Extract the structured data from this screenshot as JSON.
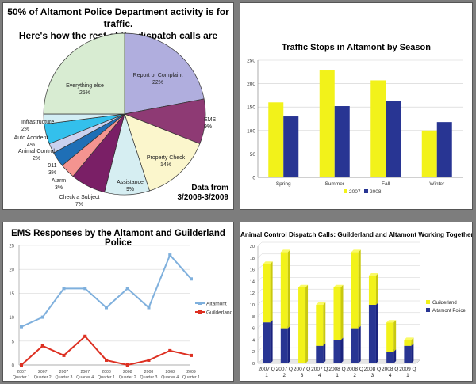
{
  "chart_data": [
    {
      "type": "pie",
      "title": "50% of Altamont Police Department activity is for traffic.",
      "subtitle": "Here's how the rest of the dispatch calls are divided:",
      "note_line1": "Data from",
      "note_line2": "3/2008-3/2009",
      "slices": [
        {
          "label": "Report or Complaint",
          "pct": "22%",
          "value": 22,
          "color": "#b0aede"
        },
        {
          "label": "EMS",
          "pct": "9%",
          "value": 9,
          "color": "#8e3a74"
        },
        {
          "label": "Property Check",
          "pct": "14%",
          "value": 14,
          "color": "#fbf6cc"
        },
        {
          "label": "Assistance",
          "pct": "9%",
          "value": 9,
          "color": "#d6eef2"
        },
        {
          "label": "Check a Subject",
          "pct": "7%",
          "value": 7,
          "color": "#7a1f66"
        },
        {
          "label": "Alarm",
          "pct": "3%",
          "value": 3,
          "color": "#f49490"
        },
        {
          "label": "911",
          "pct": "3%",
          "value": 3,
          "color": "#1f6fb6"
        },
        {
          "label": "Animal Control",
          "pct": "2%",
          "value": 2,
          "color": "#cad1ef"
        },
        {
          "label": "Auto Accident",
          "pct": "4%",
          "value": 4,
          "color": "#33c0ec"
        },
        {
          "label": "Infrastructure",
          "pct": "2%",
          "value": 2,
          "color": "#d3eef5"
        },
        {
          "label": "Everything else",
          "pct": "25%",
          "value": 25,
          "color": "#d8ecd2"
        }
      ]
    },
    {
      "type": "bar",
      "title": "Traffic Stops in Altamont by Season",
      "categories": [
        "Spring",
        "Summer",
        "Fall",
        "Winter"
      ],
      "series": [
        {
          "name": "2007",
          "values": [
            160,
            228,
            207,
            100
          ],
          "color": "#f2f21a"
        },
        {
          "name": "2008",
          "values": [
            130,
            152,
            163,
            118
          ],
          "color": "#283593"
        }
      ],
      "ylim": [
        0,
        250
      ],
      "yticks": [
        "0",
        "50",
        "100",
        "150",
        "200",
        "250"
      ],
      "legend": "bottom"
    },
    {
      "type": "line",
      "title": "EMS Responses by the Altamont and Guilderland Police",
      "categories": [
        [
          "2007",
          "Quarter 1"
        ],
        [
          "2007",
          "Quarter 2"
        ],
        [
          "2007",
          "Quarter 3"
        ],
        [
          "2007",
          "Quarter 4"
        ],
        [
          "2008",
          "Quarter 1"
        ],
        [
          "2008",
          "Quarter 2"
        ],
        [
          "2008",
          "Quarter 3"
        ],
        [
          "2008",
          "Quarter 4"
        ],
        [
          "2009",
          "Quarter 1"
        ]
      ],
      "series": [
        {
          "name": "Altamont",
          "values": [
            8,
            10,
            16,
            16,
            12,
            16,
            12,
            23,
            18
          ],
          "color": "#7fb0dd"
        },
        {
          "name": "Guilderland",
          "values": [
            0,
            4,
            2,
            6,
            1,
            0,
            1,
            3,
            2
          ],
          "color": "#dd3022"
        }
      ],
      "ylim": [
        0,
        25
      ],
      "yticks": [
        "0",
        "5",
        "10",
        "15",
        "20",
        "25"
      ],
      "legend": "right"
    },
    {
      "type": "bar",
      "stacked": true,
      "title": "Animal Control Dispatch Calls: Guilderland and Altamont Working Together",
      "categories": [
        [
          "2007 Q",
          "1"
        ],
        [
          "2007 Q",
          "2"
        ],
        [
          "2007 Q",
          "3"
        ],
        [
          "2007 Q",
          "4"
        ],
        [
          "2008 Q",
          "1"
        ],
        [
          "2008 Q",
          "2"
        ],
        [
          "2008 Q",
          "3"
        ],
        [
          "2008 Q",
          "4"
        ],
        [
          "2009 Q",
          "1"
        ]
      ],
      "series": [
        {
          "name": "Altamont Police",
          "values": [
            7,
            6,
            0,
            3,
            4,
            6,
            10,
            2,
            3
          ],
          "color": "#283593"
        },
        {
          "name": "Guilderland",
          "values": [
            10,
            13,
            13,
            7,
            9,
            13,
            5,
            5,
            1
          ],
          "color": "#f2f21a"
        }
      ],
      "ylim": [
        0,
        20
      ],
      "yticks": [
        "0",
        "2",
        "4",
        "6",
        "8",
        "10",
        "12",
        "14",
        "16",
        "18",
        "20"
      ],
      "legend": "right"
    }
  ]
}
